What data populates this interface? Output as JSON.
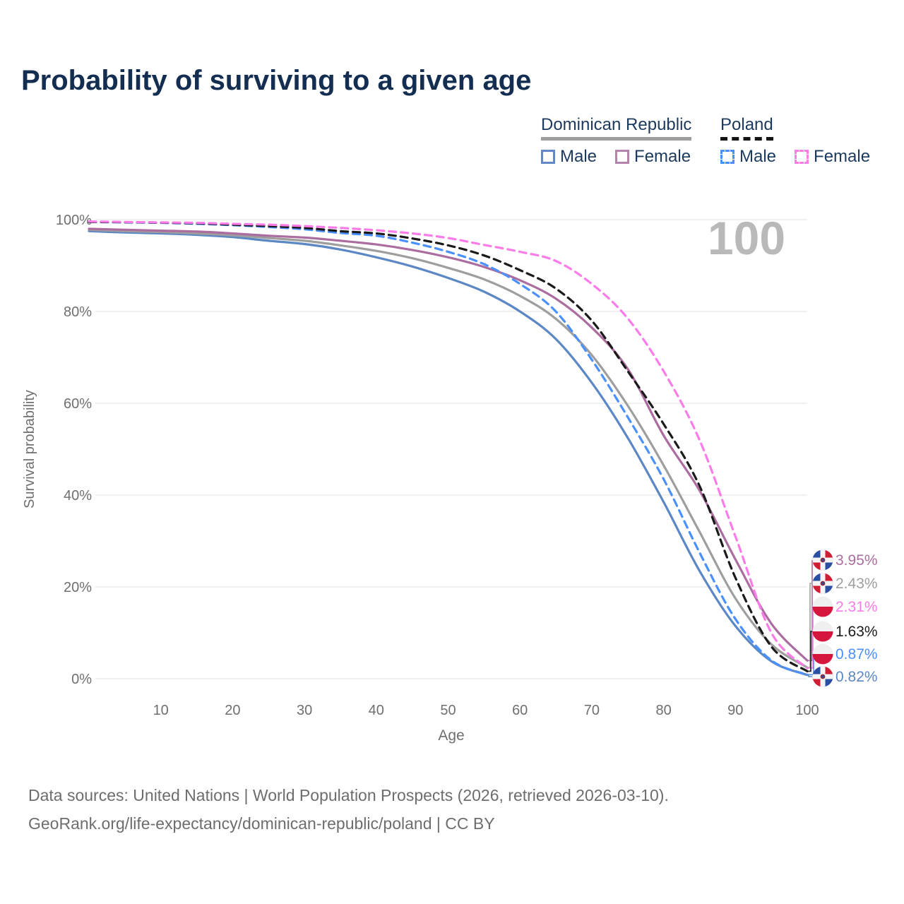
{
  "title": "Probability of surviving to a given age",
  "watermark": "100",
  "legend": {
    "groups": [
      {
        "label": "Dominican Republic",
        "line_style": "solid",
        "underline_color": "#9e9e9e",
        "items": [
          {
            "label": "Male",
            "color": "#6089c6",
            "dashed": false
          },
          {
            "label": "Female",
            "color": "#b584ad",
            "dashed": false
          }
        ]
      },
      {
        "label": "Poland",
        "line_style": "dashed",
        "underline_color": "#141414",
        "items": [
          {
            "label": "Male",
            "color": "#4a90fe",
            "dashed": true
          },
          {
            "label": "Female",
            "color": "#fb7ce8",
            "dashed": true
          }
        ]
      }
    ]
  },
  "chart_data": {
    "type": "line",
    "title": "Probability of surviving to a given age",
    "xlabel": "Age",
    "ylabel": "Survival probability",
    "xlim": [
      0,
      100
    ],
    "ylim": [
      0,
      100
    ],
    "grid": "horizontal",
    "legend_position": "top-right",
    "x_ticks": [
      10,
      20,
      30,
      40,
      50,
      60,
      70,
      80,
      90,
      100
    ],
    "y_ticks": [
      {
        "value": 0,
        "label": "0%"
      },
      {
        "value": 20,
        "label": "20%"
      },
      {
        "value": 40,
        "label": "40%"
      },
      {
        "value": 60,
        "label": "60%"
      },
      {
        "value": 80,
        "label": "80%"
      },
      {
        "value": 100,
        "label": "100%"
      }
    ],
    "x": [
      0,
      5,
      10,
      15,
      20,
      25,
      30,
      35,
      40,
      45,
      50,
      55,
      60,
      65,
      70,
      75,
      80,
      85,
      90,
      95,
      100
    ],
    "series": [
      {
        "name": "Dominican Republic — Male",
        "country": "Dominican Republic",
        "sex": "Male",
        "color": "#5b87c5",
        "dashed": false,
        "flag": "do",
        "end_label": "0.82%",
        "values": [
          97.5,
          97.2,
          97.0,
          96.7,
          96.2,
          95.4,
          94.7,
          93.5,
          91.8,
          89.8,
          87.3,
          84.3,
          80.0,
          74.0,
          64.5,
          52.5,
          38.5,
          23.5,
          11.5,
          3.8,
          0.82
        ]
      },
      {
        "name": "Dominican Republic — Both sexes",
        "country": "Dominican Republic",
        "sex": "Both",
        "color": "#9e9e9e",
        "dashed": false,
        "flag": "do",
        "end_label": "2.43%",
        "values": [
          97.8,
          97.5,
          97.3,
          97.0,
          96.6,
          96.0,
          95.4,
          94.4,
          93.2,
          91.6,
          89.5,
          87.0,
          83.4,
          78.4,
          70.5,
          59.5,
          46.5,
          32.0,
          17.5,
          7.5,
          2.43
        ]
      },
      {
        "name": "Dominican Republic — Female",
        "country": "Dominican Republic",
        "sex": "Female",
        "color": "#ab6d9f",
        "dashed": false,
        "flag": "do",
        "end_label": "3.95%",
        "values": [
          98.0,
          97.8,
          97.6,
          97.4,
          97.0,
          96.5,
          96.1,
          95.4,
          94.6,
          93.4,
          91.8,
          89.7,
          86.8,
          82.8,
          76.5,
          67.5,
          53.0,
          41.0,
          26.0,
          12.0,
          3.95
        ]
      },
      {
        "name": "Poland — Male",
        "country": "Poland",
        "sex": "Male",
        "color": "#4a90fe",
        "dashed": true,
        "flag": "pl",
        "end_label": "0.87%",
        "values": [
          99.5,
          99.4,
          99.3,
          99.1,
          98.8,
          98.4,
          97.9,
          97.1,
          96.5,
          95.0,
          93.0,
          90.3,
          86.0,
          80.0,
          69.5,
          57.0,
          43.5,
          27.5,
          13.0,
          4.0,
          0.87
        ]
      },
      {
        "name": "Poland — Both sexes",
        "country": "Poland",
        "sex": "Both",
        "color": "#1a1a1a",
        "dashed": true,
        "flag": "pl",
        "end_label": "1.63%",
        "values": [
          99.5,
          99.45,
          99.35,
          99.2,
          98.9,
          98.6,
          98.2,
          97.5,
          97.0,
          95.9,
          94.4,
          92.2,
          89.0,
          85.0,
          78.0,
          67.0,
          55.5,
          42.0,
          22.0,
          7.0,
          1.63
        ]
      },
      {
        "name": "Poland — Female",
        "country": "Poland",
        "sex": "Female",
        "color": "#fb7ce8",
        "dashed": true,
        "flag": "pl",
        "end_label": "2.31%",
        "values": [
          99.6,
          99.5,
          99.4,
          99.3,
          99.1,
          98.9,
          98.6,
          98.2,
          97.7,
          97.0,
          96.0,
          94.5,
          93.0,
          91.0,
          86.0,
          78.5,
          67.0,
          52.0,
          31.0,
          10.0,
          2.31
        ]
      }
    ]
  },
  "footer": {
    "line1": "Data sources: United Nations | World Population Prospects (2026, retrieved 2026-03-10).",
    "line2": "GeoRank.org/life-expectancy/dominican-republic/poland | CC BY"
  }
}
